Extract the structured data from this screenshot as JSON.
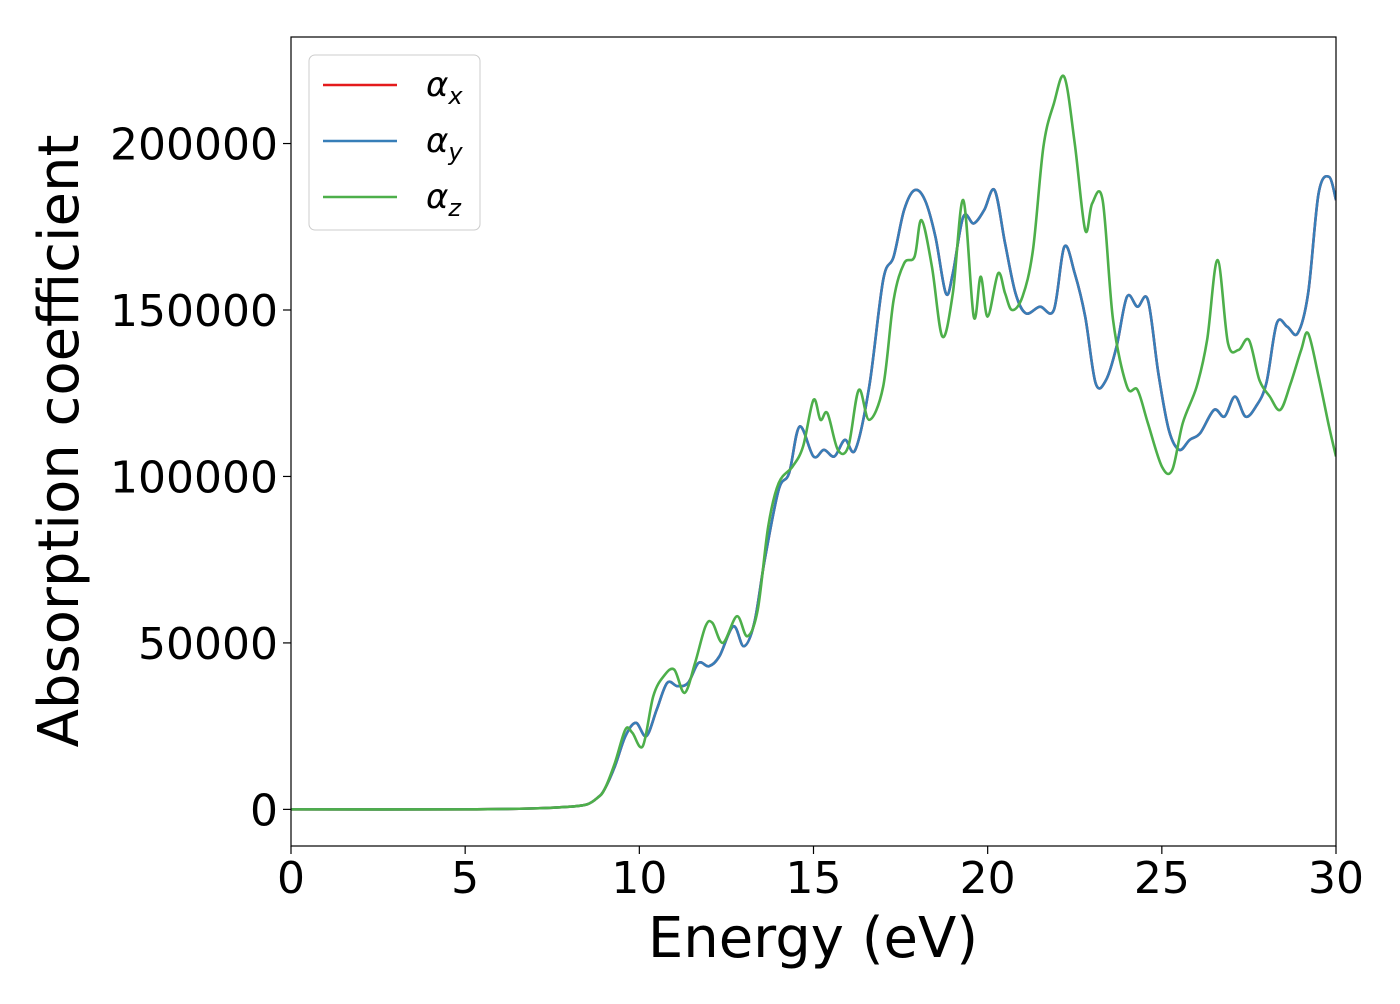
{
  "chart_data": {
    "type": "line",
    "title": "",
    "xlabel": "Energy (eV)",
    "ylabel": "Absorption coefficient",
    "xlim": [
      0,
      30
    ],
    "ylim": [
      -11000,
      232000
    ],
    "xticks": [
      0,
      5,
      10,
      15,
      20,
      25,
      30
    ],
    "yticks": [
      0,
      50000,
      100000,
      150000,
      200000
    ],
    "xtick_labels": [
      "0",
      "5",
      "10",
      "15",
      "20",
      "25",
      "30"
    ],
    "ytick_labels": [
      "0",
      "50000",
      "100000",
      "150000",
      "200000"
    ],
    "grid": false,
    "legend_position": "top-left",
    "series": [
      {
        "name": "α_x",
        "legend_base": "α",
        "legend_sub": "x",
        "color": "#e41a1c",
        "x": [
          0,
          5,
          7,
          8,
          8.5,
          8.8,
          9.0,
          9.3,
          9.6,
          9.9,
          10.2,
          10.5,
          10.8,
          11.1,
          11.4,
          11.7,
          12.0,
          12.3,
          12.7,
          13.0,
          13.3,
          13.6,
          14.0,
          14.3,
          14.6,
          15.0,
          15.3,
          15.6,
          15.9,
          16.2,
          16.6,
          17.0,
          17.3,
          17.6,
          17.9,
          18.2,
          18.5,
          18.8,
          19.0,
          19.3,
          19.6,
          19.9,
          20.2,
          20.5,
          20.8,
          21.1,
          21.5,
          21.9,
          22.2,
          22.5,
          22.8,
          23.1,
          23.4,
          23.7,
          24.0,
          24.3,
          24.6,
          24.9,
          25.2,
          25.5,
          25.8,
          26.1,
          26.5,
          26.8,
          27.1,
          27.4,
          27.7,
          28.0,
          28.3,
          28.6,
          28.9,
          29.2,
          29.5,
          29.8,
          30.0
        ],
        "y": [
          0,
          0,
          300,
          800,
          1500,
          3500,
          6000,
          13000,
          22000,
          26000,
          22000,
          30000,
          38000,
          37000,
          38000,
          44000,
          43000,
          46000,
          55000,
          49000,
          56000,
          75000,
          96000,
          101000,
          115000,
          106000,
          108000,
          106000,
          111000,
          108000,
          127000,
          159000,
          166000,
          180000,
          186000,
          183000,
          172000,
          155000,
          161000,
          178000,
          176000,
          180000,
          186000,
          170000,
          155000,
          149000,
          151000,
          150000,
          169000,
          161000,
          148000,
          128000,
          129000,
          139000,
          154000,
          151000,
          153000,
          131000,
          114000,
          108000,
          111000,
          113000,
          120000,
          118000,
          124000,
          118000,
          121000,
          128000,
          146000,
          145000,
          143000,
          155000,
          185000,
          190000,
          183000
        ]
      },
      {
        "name": "α_y",
        "legend_base": "α",
        "legend_sub": "y",
        "color": "#377eb8",
        "x": [
          0,
          5,
          7,
          8,
          8.5,
          8.8,
          9.0,
          9.3,
          9.6,
          9.9,
          10.2,
          10.5,
          10.8,
          11.1,
          11.4,
          11.7,
          12.0,
          12.3,
          12.7,
          13.0,
          13.3,
          13.6,
          14.0,
          14.3,
          14.6,
          15.0,
          15.3,
          15.6,
          15.9,
          16.2,
          16.6,
          17.0,
          17.3,
          17.6,
          17.9,
          18.2,
          18.5,
          18.8,
          19.0,
          19.3,
          19.6,
          19.9,
          20.2,
          20.5,
          20.8,
          21.1,
          21.5,
          21.9,
          22.2,
          22.5,
          22.8,
          23.1,
          23.4,
          23.7,
          24.0,
          24.3,
          24.6,
          24.9,
          25.2,
          25.5,
          25.8,
          26.1,
          26.5,
          26.8,
          27.1,
          27.4,
          27.7,
          28.0,
          28.3,
          28.6,
          28.9,
          29.2,
          29.5,
          29.8,
          30.0
        ],
        "y": [
          0,
          0,
          300,
          800,
          1500,
          3500,
          6000,
          13000,
          22000,
          26000,
          22000,
          30000,
          38000,
          37000,
          38000,
          44000,
          43000,
          46000,
          55000,
          49000,
          56000,
          75000,
          96000,
          101000,
          115000,
          106000,
          108000,
          106000,
          111000,
          108000,
          127000,
          159000,
          166000,
          180000,
          186000,
          183000,
          172000,
          155000,
          161000,
          178000,
          176000,
          180000,
          186000,
          170000,
          155000,
          149000,
          151000,
          150000,
          169000,
          161000,
          148000,
          128000,
          129000,
          139000,
          154000,
          151000,
          153000,
          131000,
          114000,
          108000,
          111000,
          113000,
          120000,
          118000,
          124000,
          118000,
          121000,
          128000,
          146000,
          145000,
          143000,
          155000,
          185000,
          190000,
          183000
        ]
      },
      {
        "name": "α_z",
        "legend_base": "α",
        "legend_sub": "z",
        "color": "#4daf4a",
        "x": [
          0,
          5,
          7,
          8,
          8.5,
          8.8,
          9.0,
          9.3,
          9.6,
          9.8,
          10.1,
          10.4,
          10.7,
          11.0,
          11.3,
          11.6,
          11.9,
          12.1,
          12.4,
          12.8,
          13.1,
          13.4,
          13.7,
          14.0,
          14.4,
          14.7,
          15.0,
          15.2,
          15.4,
          15.7,
          16.0,
          16.3,
          16.6,
          17.0,
          17.3,
          17.6,
          17.9,
          18.1,
          18.4,
          18.7,
          19.0,
          19.3,
          19.6,
          19.8,
          20.0,
          20.3,
          20.5,
          20.7,
          21.0,
          21.3,
          21.6,
          21.9,
          22.2,
          22.5,
          22.8,
          23.0,
          23.3,
          23.6,
          24.0,
          24.3,
          24.6,
          25.0,
          25.3,
          25.6,
          26.0,
          26.3,
          26.6,
          26.9,
          27.2,
          27.5,
          27.8,
          28.1,
          28.4,
          28.7,
          29.0,
          29.2,
          29.5,
          29.8,
          30.0
        ],
        "y": [
          0,
          0,
          300,
          800,
          1500,
          3500,
          6000,
          14000,
          24000,
          23000,
          19000,
          34000,
          40000,
          42000,
          35000,
          44000,
          55000,
          56000,
          50000,
          58000,
          52000,
          60000,
          85000,
          98000,
          103000,
          109000,
          123000,
          117000,
          119000,
          108000,
          109000,
          126000,
          117000,
          127000,
          153000,
          164000,
          166000,
          177000,
          163000,
          142000,
          155000,
          183000,
          148000,
          160000,
          148000,
          161000,
          155000,
          150000,
          154000,
          168000,
          199000,
          212000,
          220000,
          200000,
          174000,
          182000,
          183000,
          147000,
          127000,
          126000,
          116000,
          103000,
          102000,
          116000,
          127000,
          141000,
          165000,
          140000,
          138000,
          141000,
          129000,
          124000,
          120000,
          128000,
          138000,
          143000,
          130000,
          115000,
          106000
        ]
      }
    ]
  }
}
